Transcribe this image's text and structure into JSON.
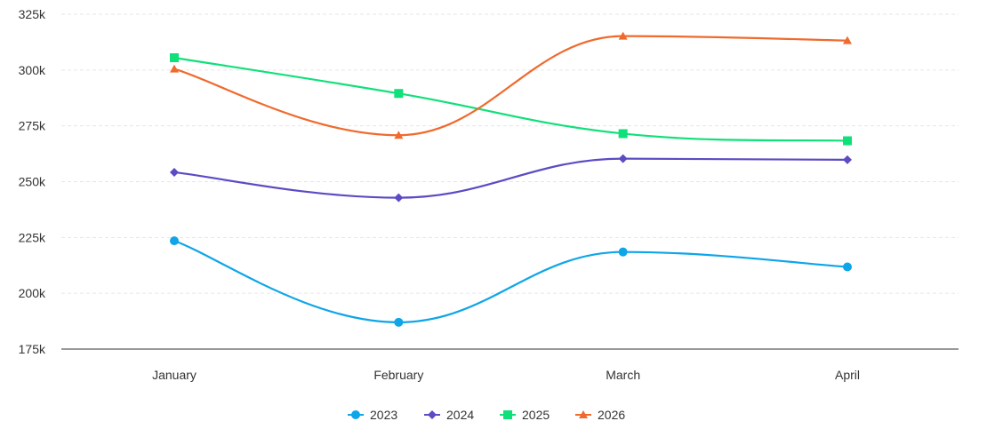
{
  "chart_data": {
    "type": "line",
    "title": "",
    "xlabel": "",
    "ylabel": "",
    "categories": [
      "January",
      "February",
      "March",
      "April"
    ],
    "ylim": [
      175000,
      325000
    ],
    "yticks": [
      175000,
      200000,
      225000,
      250000,
      275000,
      300000,
      325000
    ],
    "ytick_labels": [
      "175k",
      "200k",
      "225k",
      "250k",
      "275k",
      "300k",
      "325k"
    ],
    "grid": true,
    "legend_position": "bottom",
    "curve": "smooth",
    "series": [
      {
        "name": "2023",
        "color": "#0ea5e9",
        "marker": "circle",
        "values": [
          223500,
          187000,
          218500,
          211800
        ]
      },
      {
        "name": "2024",
        "color": "#5b4bc4",
        "marker": "diamond",
        "values": [
          254200,
          242800,
          260300,
          259800
        ]
      },
      {
        "name": "2025",
        "color": "#10e07a",
        "marker": "square",
        "values": [
          305500,
          289500,
          271500,
          268300
        ]
      },
      {
        "name": "2026",
        "color": "#f06a2d",
        "marker": "triangle",
        "values": [
          300500,
          270800,
          315200,
          313200
        ]
      }
    ]
  }
}
